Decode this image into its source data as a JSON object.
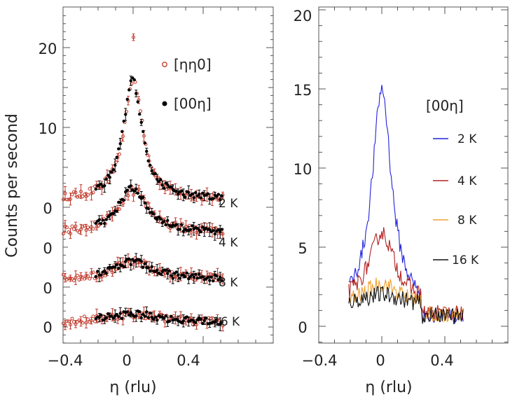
{
  "chart_data": [
    {
      "type": "scatter",
      "panel": "left",
      "ylabel": "Counts per second",
      "xlabel": "η (rlu)",
      "xlim": [
        -0.4,
        0.8
      ],
      "xticks": [
        "−0.4",
        "0",
        "0.4"
      ],
      "yticks_top": [
        "20",
        "10"
      ],
      "offset_zero_labels": [
        "0",
        "0",
        "0",
        "0"
      ],
      "legend": [
        {
          "marker": "open-circle",
          "color": "#c0392b",
          "label": "[ηη0]"
        },
        {
          "marker": "filled-circle",
          "color": "#000000",
          "label": "[00η]"
        }
      ],
      "temperatures": [
        "2 K",
        "4 K",
        "8 K",
        "16 K"
      ],
      "curves": [
        {
          "temperature": "2 K",
          "baseline": 0,
          "amplitude": 15.0,
          "width": 0.065,
          "tail": 1.0,
          "peak_red": 21.0
        },
        {
          "temperature": "4 K",
          "baseline": -5,
          "amplitude": 5.6,
          "width": 0.1,
          "tail": 1.8,
          "peak_red": 6.0
        },
        {
          "temperature": "8 K",
          "baseline": -10,
          "amplitude": 2.2,
          "width": 0.13,
          "tail": 1.0,
          "peak_red": 2.5
        },
        {
          "temperature": "16 K",
          "baseline": -15,
          "amplitude": 1.1,
          "width": 0.2,
          "tail": 0.5,
          "peak_red": 1.0
        }
      ]
    },
    {
      "type": "line",
      "panel": "right",
      "xlabel": "η (rlu)",
      "ylabel": "",
      "xlim": [
        -0.4,
        0.8
      ],
      "ylim": [
        -1,
        20
      ],
      "xticks": [
        "−0.4",
        "0",
        "0.4"
      ],
      "yticks": [
        "0",
        "5",
        "10",
        "15",
        "20"
      ],
      "legend_title": "[00η]",
      "series": [
        {
          "name": "2 K",
          "color": "#2222dd",
          "amplitude": 14.0,
          "width": 0.075,
          "base": 1.0
        },
        {
          "name": "4 K",
          "color": "#b22222",
          "amplitude": 4.5,
          "width": 0.1,
          "base": 1.4
        },
        {
          "name": "8 K",
          "color": "#f0a030",
          "amplitude": 1.4,
          "width": 0.13,
          "base": 1.3
        },
        {
          "name": "16 K",
          "color": "#111111",
          "amplitude": 0.9,
          "width": 0.2,
          "base": 1.1
        }
      ]
    }
  ]
}
